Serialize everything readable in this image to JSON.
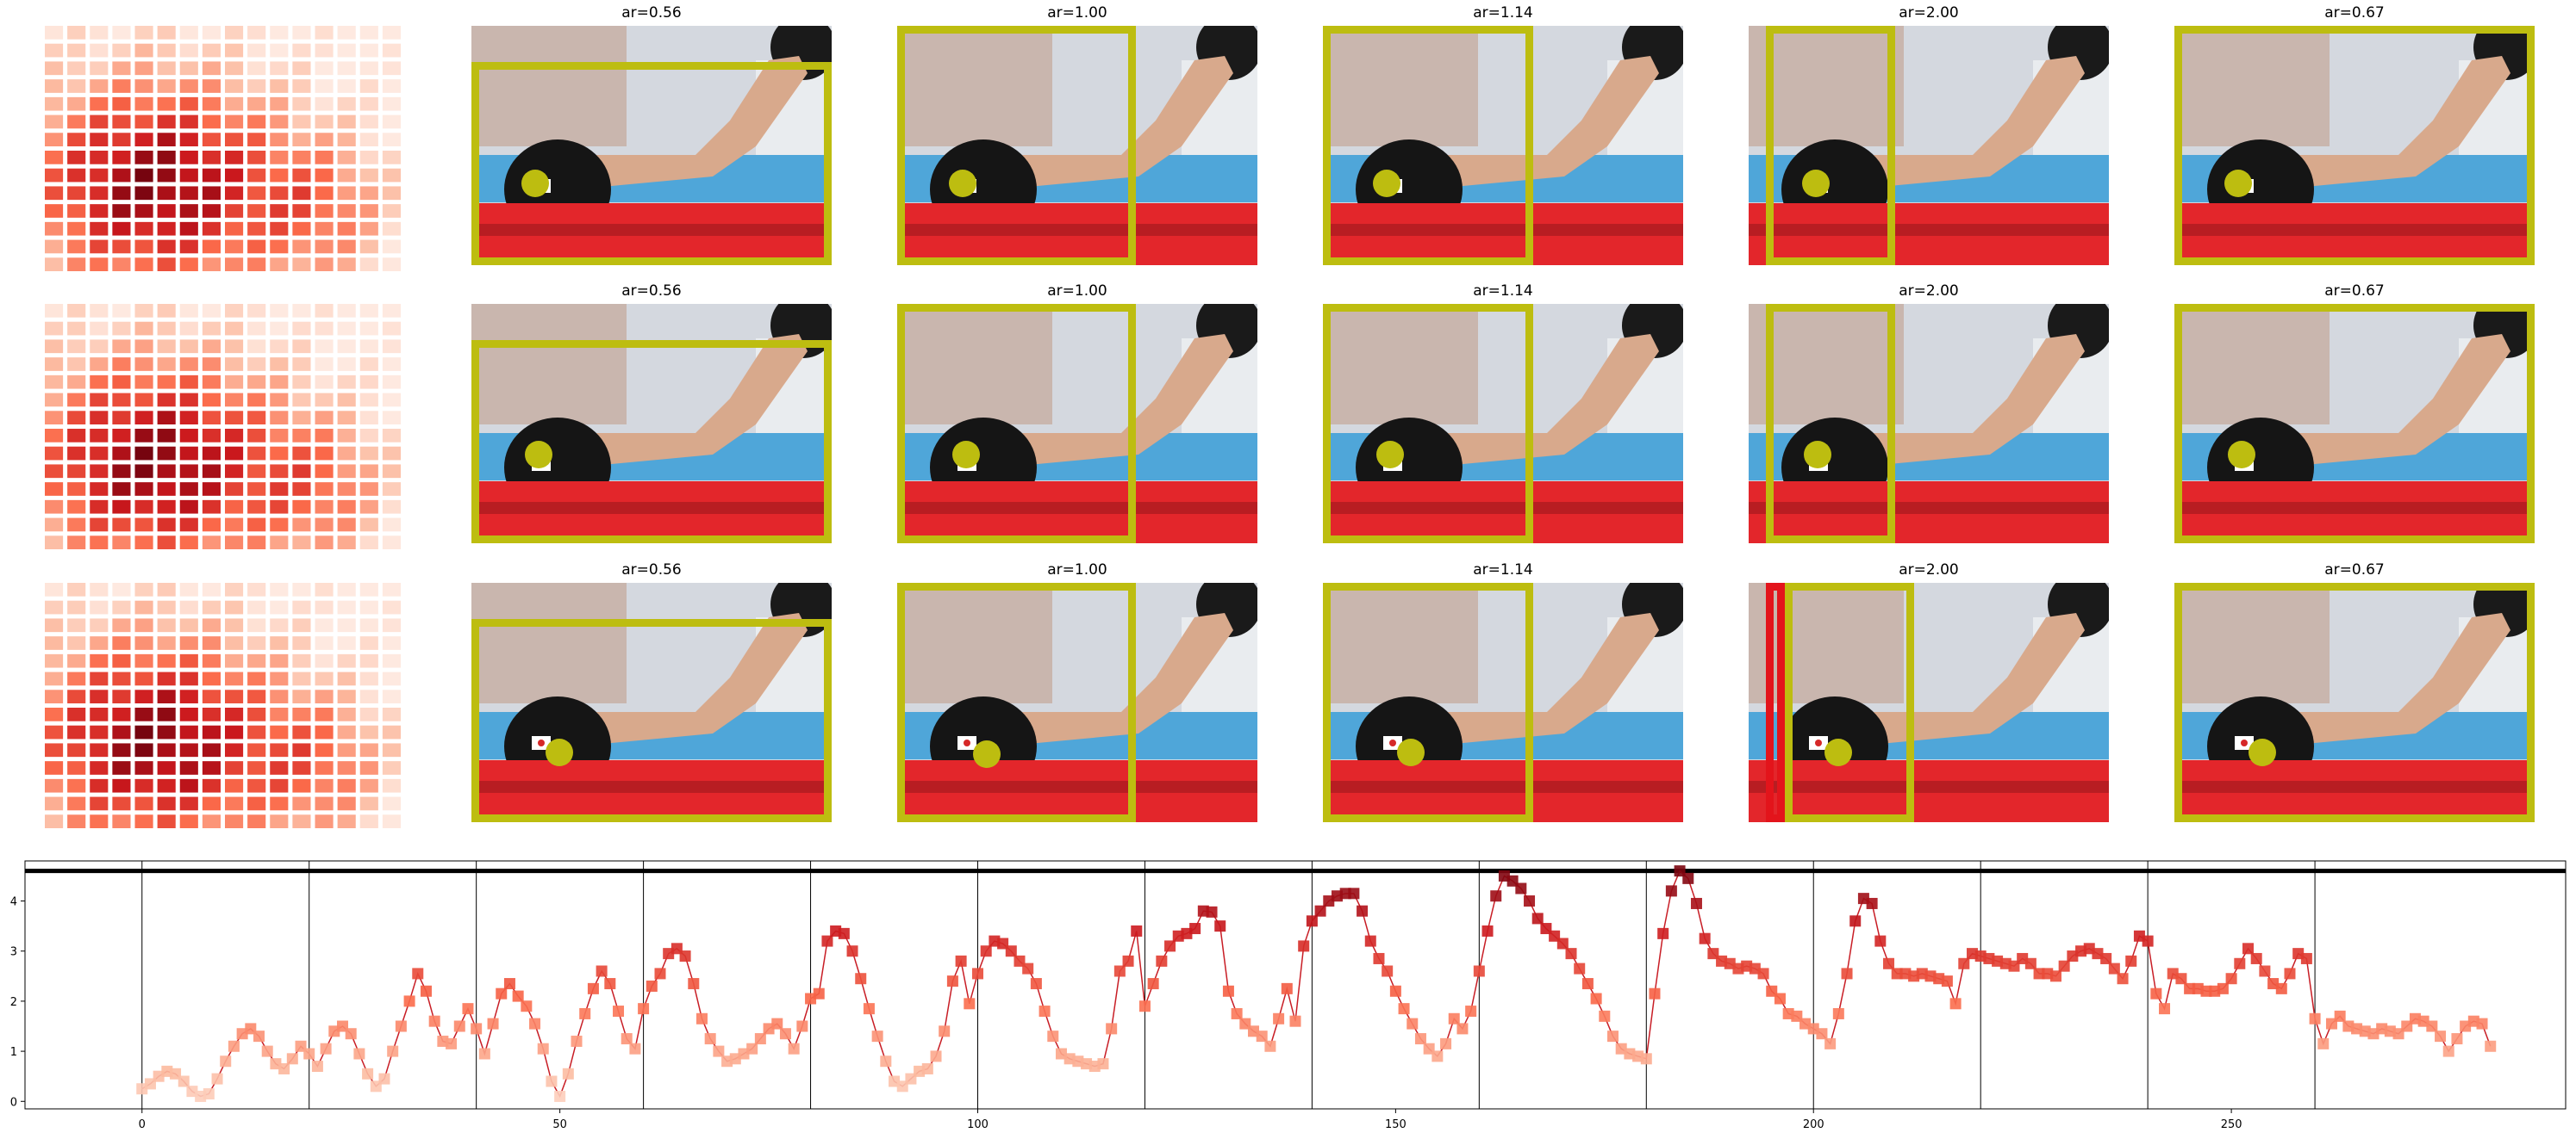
{
  "rows": [
    {
      "panels": [
        {
          "title": "ar=0.56",
          "box_color": "olive",
          "dot_color": "olive"
        },
        {
          "title": "ar=1.00",
          "box_color": "olive",
          "dot_color": "olive"
        },
        {
          "title": "ar=1.14",
          "box_color": "olive",
          "dot_color": "olive"
        },
        {
          "title": "ar=2.00",
          "box_color": "olive",
          "dot_color": "olive"
        },
        {
          "title": "ar=0.67",
          "box_color": "olive",
          "dot_color": "olive"
        }
      ]
    },
    {
      "panels": [
        {
          "title": "ar=0.56",
          "box_color": "olive",
          "dot_color": "olive"
        },
        {
          "title": "ar=1.00",
          "box_color": "olive",
          "dot_color": "olive"
        },
        {
          "title": "ar=1.14",
          "box_color": "olive",
          "dot_color": "olive"
        },
        {
          "title": "ar=2.00",
          "box_color": "olive",
          "dot_color": "olive"
        },
        {
          "title": "ar=0.67",
          "box_color": "olive",
          "dot_color": "olive"
        }
      ]
    },
    {
      "panels": [
        {
          "title": "ar=0.56",
          "box_color": "olive",
          "dot_color": "olive"
        },
        {
          "title": "ar=1.00",
          "box_color": "olive",
          "dot_color": "olive"
        },
        {
          "title": "ar=1.14",
          "box_color": "olive",
          "dot_color": "olive"
        },
        {
          "title": "ar=2.00",
          "box_color": "olive",
          "dot_color": "olive",
          "extra_box_color": "red"
        },
        {
          "title": "ar=0.67",
          "box_color": "olive",
          "dot_color": "olive"
        }
      ]
    }
  ],
  "colors": {
    "olive": "#bdbd10",
    "red": "#e3141b",
    "line": "#c81d25"
  },
  "chart_data": [
    {
      "type": "heatmap",
      "title": "",
      "rows": 14,
      "cols": 16,
      "colormap": "Reds",
      "note_values": "intensity 0-1, peak near lower-left-center"
    },
    {
      "type": "line",
      "title": "",
      "xlabel": "",
      "ylabel": "",
      "xlim": [
        -14,
        290
      ],
      "ylim": [
        -0.15,
        4.8
      ],
      "xticks": [
        0,
        50,
        100,
        150,
        200,
        250
      ],
      "yticks": [
        0,
        1,
        2,
        3,
        4
      ],
      "vlines": [
        0,
        20,
        40,
        60,
        80,
        100,
        120,
        140,
        160,
        180,
        200,
        220,
        240,
        260
      ],
      "hline": 4.6,
      "grid": false,
      "marker": "square",
      "x_start": 0,
      "y": [
        0.25,
        0.35,
        0.5,
        0.6,
        0.55,
        0.4,
        0.2,
        0.1,
        0.15,
        0.45,
        0.8,
        1.1,
        1.35,
        1.45,
        1.3,
        1.0,
        0.75,
        0.65,
        0.85,
        1.1,
        0.95,
        0.7,
        1.05,
        1.4,
        1.5,
        1.35,
        0.95,
        0.55,
        0.3,
        0.45,
        1.0,
        1.5,
        2.0,
        2.55,
        2.2,
        1.6,
        1.2,
        1.15,
        1.5,
        1.85,
        1.45,
        0.95,
        1.55,
        2.15,
        2.35,
        2.1,
        1.9,
        1.55,
        1.05,
        0.4,
        0.1,
        0.55,
        1.2,
        1.75,
        2.25,
        2.6,
        2.35,
        1.8,
        1.25,
        1.05,
        1.85,
        2.3,
        2.55,
        2.95,
        3.05,
        2.9,
        2.35,
        1.65,
        1.25,
        1.0,
        0.8,
        0.85,
        0.95,
        1.05,
        1.25,
        1.45,
        1.55,
        1.35,
        1.05,
        1.5,
        2.05,
        2.15,
        3.2,
        3.4,
        3.35,
        3.0,
        2.45,
        1.85,
        1.3,
        0.8,
        0.4,
        0.3,
        0.45,
        0.6,
        0.65,
        0.9,
        1.4,
        2.4,
        2.8,
        1.95,
        2.55,
        3.0,
        3.2,
        3.15,
        3.0,
        2.8,
        2.65,
        2.35,
        1.8,
        1.3,
        0.95,
        0.85,
        0.8,
        0.75,
        0.7,
        0.75,
        1.45,
        2.6,
        2.8,
        3.4,
        1.9,
        2.35,
        2.8,
        3.1,
        3.3,
        3.35,
        3.45,
        3.8,
        3.78,
        3.5,
        2.2,
        1.75,
        1.55,
        1.4,
        1.3,
        1.1,
        1.65,
        2.25,
        1.6,
        3.1,
        3.6,
        3.8,
        4.0,
        4.1,
        4.15,
        4.15,
        3.8,
        3.2,
        2.85,
        2.6,
        2.2,
        1.85,
        1.55,
        1.25,
        1.05,
        0.9,
        1.15,
        1.65,
        1.45,
        1.8,
        2.6,
        3.4,
        4.1,
        4.5,
        4.4,
        4.25,
        4.0,
        3.65,
        3.45,
        3.3,
        3.15,
        2.95,
        2.65,
        2.35,
        2.05,
        1.7,
        1.3,
        1.05,
        0.95,
        0.9,
        0.85,
        2.15,
        3.35,
        4.2,
        4.6,
        4.45,
        3.95,
        3.25,
        2.95,
        2.8,
        2.75,
        2.65,
        2.7,
        2.65,
        2.55,
        2.2,
        2.05,
        1.75,
        1.7,
        1.55,
        1.45,
        1.35,
        1.15,
        1.75,
        2.55,
        3.6,
        4.05,
        3.95,
        3.2,
        2.75,
        2.55,
        2.55,
        2.5,
        2.55,
        2.5,
        2.45,
        2.4,
        1.95,
        2.75,
        2.95,
        2.9,
        2.85,
        2.8,
        2.75,
        2.7,
        2.85,
        2.75,
        2.55,
        2.55,
        2.5,
        2.7,
        2.9,
        3.0,
        3.05,
        2.95,
        2.85,
        2.65,
        2.45,
        2.8,
        3.3,
        3.2,
        2.15,
        1.85,
        2.55,
        2.45,
        2.25,
        2.25,
        2.2,
        2.2,
        2.25,
        2.45,
        2.75,
        3.05,
        2.85,
        2.6,
        2.35,
        2.25,
        2.55,
        2.95,
        2.85,
        1.65,
        1.15,
        1.55,
        1.7,
        1.5,
        1.45,
        1.4,
        1.35,
        1.45,
        1.4,
        1.35,
        1.5,
        1.65,
        1.6,
        1.5,
        1.3,
        1.0,
        1.25,
        1.5,
        1.6,
        1.55,
        1.1
      ]
    }
  ]
}
